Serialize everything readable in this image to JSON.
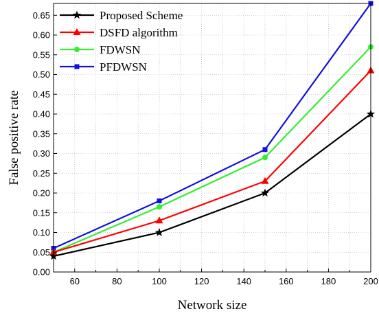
{
  "chart_data": {
    "type": "line",
    "title": "",
    "xlabel": "Network size",
    "ylabel": "False positive rate",
    "xlim": [
      50,
      200
    ],
    "ylim": [
      0,
      0.68
    ],
    "x_ticks": [
      60,
      80,
      100,
      120,
      140,
      160,
      180,
      200
    ],
    "y_ticks": [
      0.0,
      0.05,
      0.1,
      0.15,
      0.2,
      0.25,
      0.3,
      0.35,
      0.4,
      0.45,
      0.5,
      0.55,
      0.6,
      0.65
    ],
    "grid": true,
    "legend_position": "top-left",
    "x": [
      50,
      100,
      150,
      200
    ],
    "series": [
      {
        "name": "Proposed Scheme",
        "color": "#000000",
        "marker": "star",
        "values": [
          0.04,
          0.1,
          0.2,
          0.4
        ]
      },
      {
        "name": "DSFD algorithm",
        "color": "#ff0000",
        "marker": "triangle",
        "values": [
          0.05,
          0.13,
          0.23,
          0.51
        ]
      },
      {
        "name": "FDWSN",
        "color": "#33ee33",
        "marker": "circle",
        "values": [
          0.05,
          0.165,
          0.29,
          0.57
        ]
      },
      {
        "name": "PFDWSN",
        "color": "#1010e0",
        "marker": "square",
        "values": [
          0.06,
          0.18,
          0.31,
          0.68
        ]
      }
    ]
  }
}
